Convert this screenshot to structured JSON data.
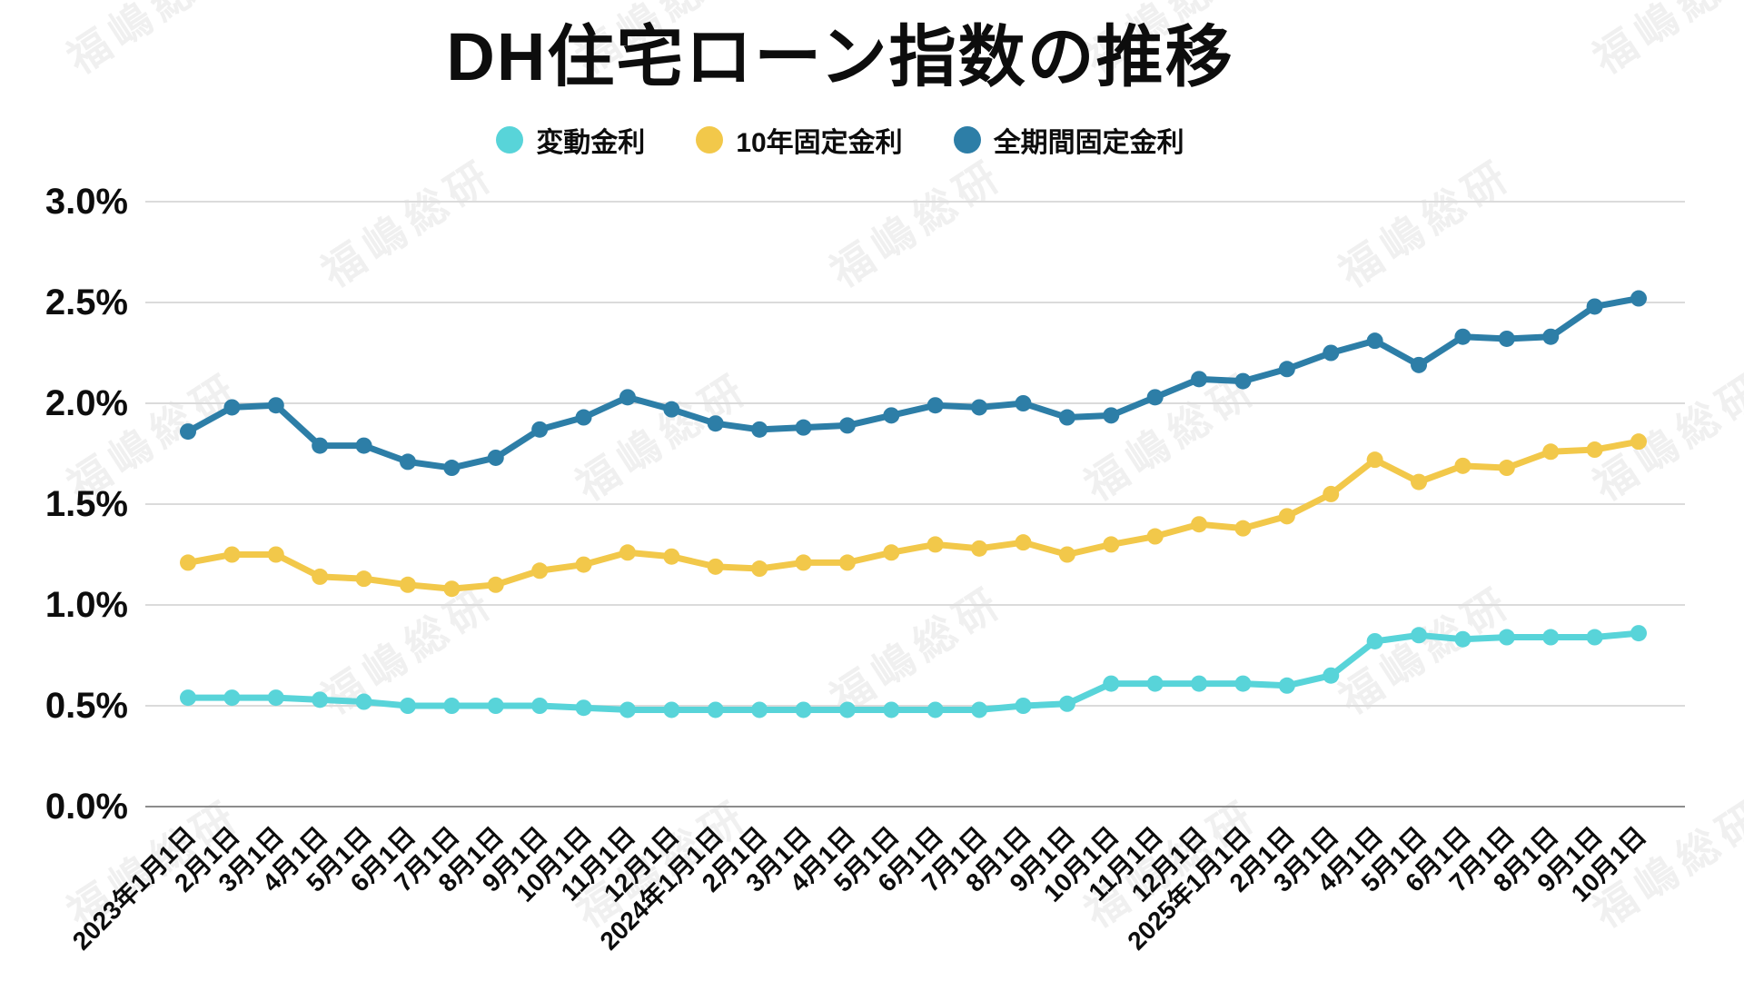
{
  "chart_data": {
    "type": "line",
    "title": "DH住宅ローン指数の推移",
    "categories": [
      "2023年1月1日",
      "2月1日",
      "3月1日",
      "4月1日",
      "5月1日",
      "6月1日",
      "7月1日",
      "8月1日",
      "9月1日",
      "10月1日",
      "11月1日",
      "12月1日",
      "2024年1月1日",
      "2月1日",
      "3月1日",
      "4月1日",
      "5月1日",
      "6月1日",
      "7月1日",
      "8月1日",
      "9月1日",
      "10月1日",
      "11月1日",
      "12月1日",
      "2025年1月1日",
      "2月1日",
      "3月1日",
      "4月1日",
      "5月1日",
      "6月1日",
      "7月1日",
      "8月1日",
      "9月1日",
      "10月1日"
    ],
    "series": [
      {
        "name": "変動金利",
        "color": "#58D4D9",
        "values": [
          0.54,
          0.54,
          0.54,
          0.53,
          0.52,
          0.5,
          0.5,
          0.5,
          0.5,
          0.49,
          0.48,
          0.48,
          0.48,
          0.48,
          0.48,
          0.48,
          0.48,
          0.48,
          0.48,
          0.5,
          0.51,
          0.61,
          0.61,
          0.61,
          0.61,
          0.6,
          0.65,
          0.82,
          0.85,
          0.83,
          0.84,
          0.84,
          0.84,
          0.86
        ]
      },
      {
        "name": "10年固定金利",
        "color": "#F2C84A",
        "values": [
          1.21,
          1.25,
          1.25,
          1.14,
          1.13,
          1.1,
          1.08,
          1.1,
          1.17,
          1.2,
          1.26,
          1.24,
          1.19,
          1.18,
          1.21,
          1.21,
          1.26,
          1.3,
          1.28,
          1.31,
          1.25,
          1.3,
          1.34,
          1.4,
          1.38,
          1.44,
          1.55,
          1.72,
          1.61,
          1.69,
          1.68,
          1.76,
          1.77,
          1.81
        ]
      },
      {
        "name": "全期間固定金利",
        "color": "#2D7EA7",
        "values": [
          1.86,
          1.98,
          1.99,
          1.79,
          1.79,
          1.71,
          1.68,
          1.73,
          1.87,
          1.93,
          2.03,
          1.97,
          1.9,
          1.87,
          1.88,
          1.89,
          1.94,
          1.99,
          1.98,
          2.0,
          1.93,
          1.94,
          2.03,
          2.12,
          2.11,
          2.17,
          2.25,
          2.31,
          2.19,
          2.33,
          2.32,
          2.33,
          2.48,
          2.52
        ]
      }
    ],
    "y_axis": {
      "min": 0.0,
      "max": 3.0,
      "step": 0.5,
      "tick_labels": [
        "0.0%",
        "0.5%",
        "1.0%",
        "1.5%",
        "2.0%",
        "2.5%",
        "3.0%"
      ]
    },
    "grid": true,
    "legend_position": "top"
  },
  "watermark": {
    "text": "福嶋総研"
  },
  "style": {
    "gridline_color": "#DBDBDB",
    "baseline_color": "#8C8C8C",
    "text_color": "#0D0D0D"
  }
}
